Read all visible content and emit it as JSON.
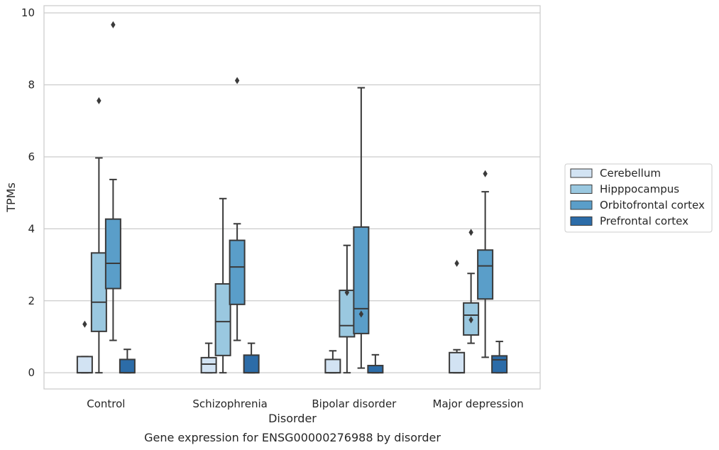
{
  "caption": "Gene expression for ENSG00000276988 by disorder",
  "chart_data": {
    "type": "boxplot",
    "xlabel": "Disorder",
    "ylabel": "TPMs",
    "ylim": [
      -0.45,
      10.2
    ],
    "yticks": [
      "0",
      "2",
      "4",
      "6",
      "8",
      "10"
    ],
    "grid": "horizontal",
    "legend_position": "right",
    "categories": [
      "Control",
      "Schizophrenia",
      "Bipolar disorder",
      "Major depression"
    ],
    "series": [
      {
        "name": "Cerebellum",
        "color": "#d2e3f3",
        "boxes": [
          {
            "q1": 0,
            "median": 0,
            "q3": 0.45,
            "low": 0,
            "high": 0.45,
            "outliers": []
          },
          {
            "q1": 0,
            "median": 0.24,
            "q3": 0.42,
            "low": 0,
            "high": 0.82,
            "outliers": []
          },
          {
            "q1": 0,
            "median": 0,
            "q3": 0.37,
            "low": 0,
            "high": 0.61,
            "outliers": []
          },
          {
            "q1": 0,
            "median": 0,
            "q3": 0.56,
            "low": 0,
            "high": 0.64,
            "outliers": []
          }
        ]
      },
      {
        "name": "Hipppocampus",
        "color": "#9ac8e0",
        "boxes": [
          {
            "q1": 1.15,
            "median": 1.96,
            "q3": 3.33,
            "low": 0,
            "high": 5.97,
            "outliers": [
              7.56
            ]
          },
          {
            "q1": 0.48,
            "median": 1.42,
            "q3": 2.47,
            "low": 0,
            "high": 4.84,
            "outliers": []
          },
          {
            "q1": 1.0,
            "median": 1.31,
            "q3": 2.29,
            "low": 0,
            "high": 3.54,
            "outliers": []
          },
          {
            "q1": 1.05,
            "median": 1.6,
            "q3": 1.94,
            "low": 0.82,
            "high": 2.76,
            "outliers": []
          }
        ]
      },
      {
        "name": "Orbitofrontal cortex",
        "color": "#5a9ec9",
        "boxes": [
          {
            "q1": 2.34,
            "median": 3.04,
            "q3": 4.27,
            "low": 0.9,
            "high": 5.37,
            "outliers": [
              9.67
            ]
          },
          {
            "q1": 1.9,
            "median": 2.94,
            "q3": 3.68,
            "low": 0.9,
            "high": 4.14,
            "outliers": [
              8.12
            ]
          },
          {
            "q1": 1.09,
            "median": 1.78,
            "q3": 4.05,
            "low": 0.13,
            "high": 7.92,
            "outliers": []
          },
          {
            "q1": 2.05,
            "median": 2.97,
            "q3": 3.41,
            "low": 0.43,
            "high": 5.03,
            "outliers": []
          }
        ]
      },
      {
        "name": "Prefrontal cortex",
        "color": "#2c6ca8",
        "boxes": [
          {
            "q1": 0,
            "median": 0,
            "q3": 0.37,
            "low": 0,
            "high": 0.65,
            "outliers": []
          },
          {
            "q1": 0,
            "median": 0,
            "q3": 0.49,
            "low": 0,
            "high": 0.82,
            "outliers": []
          },
          {
            "q1": 0,
            "median": 0,
            "q3": 0.2,
            "low": 0,
            "high": 0.5,
            "outliers": []
          },
          {
            "q1": 0,
            "median": 0.36,
            "q3": 0.47,
            "low": 0,
            "high": 0.87,
            "outliers": []
          }
        ]
      }
    ],
    "extra_outliers": [
      {
        "category": 0,
        "series": 0,
        "value": 1.35
      },
      {
        "category": 2,
        "series": 1,
        "value": 2.23
      },
      {
        "category": 2,
        "series": 2,
        "value": 1.63
      },
      {
        "category": 3,
        "series": 0,
        "value": 3.04
      },
      {
        "category": 3,
        "series": 1,
        "value": 1.47
      },
      {
        "category": 3,
        "series": 1,
        "value": 3.9
      },
      {
        "category": 3,
        "series": 2,
        "value": 5.53
      }
    ]
  }
}
